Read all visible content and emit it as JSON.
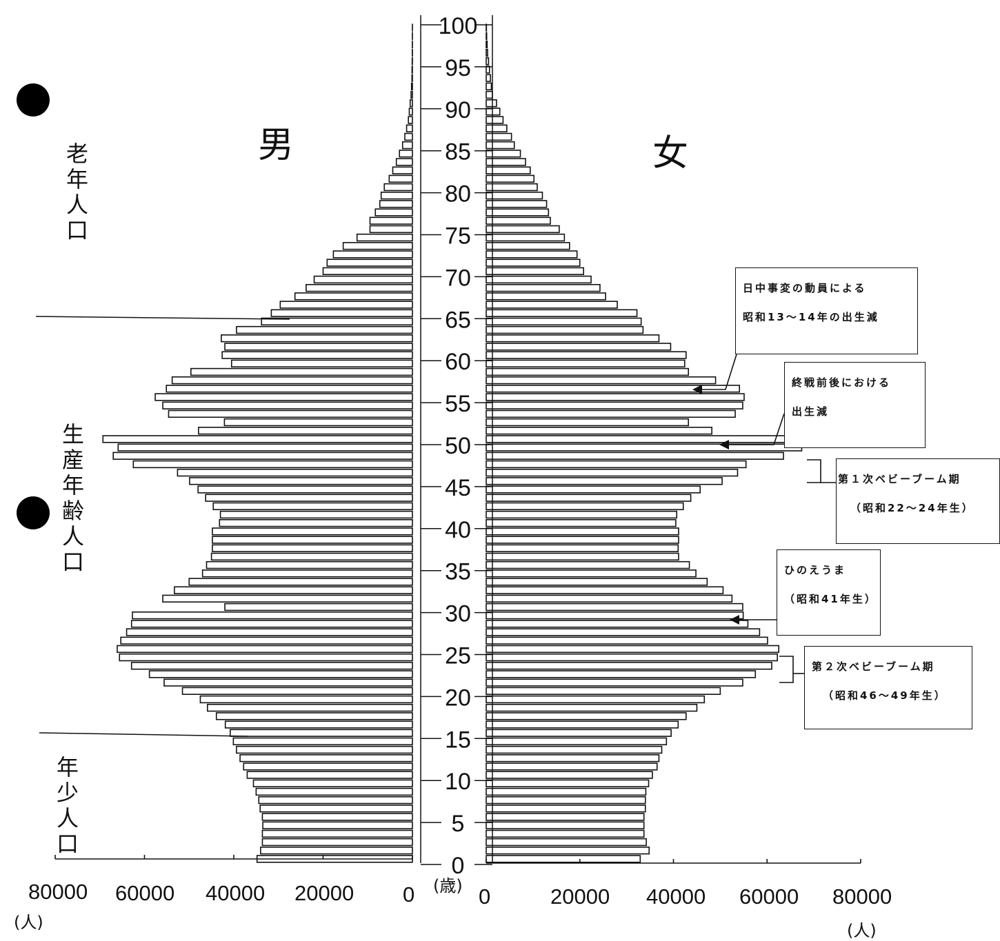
{
  "chart_data": {
    "type": "bar",
    "orientation": "horizontal-population-pyramid",
    "age_ticks": [
      "100",
      "95",
      "90",
      "85",
      "80",
      "75",
      "70",
      "65",
      "60",
      "55",
      "50",
      "45",
      "40",
      "35",
      "30",
      "25",
      "20",
      "15",
      "10",
      "5",
      "0"
    ],
    "age_unit": "(歳)",
    "male_label": "男",
    "female_label": "女",
    "x_ticks_male": [
      "80000",
      "60000",
      "40000",
      "20000",
      "0"
    ],
    "x_ticks_female": [
      "0",
      "20000",
      "40000",
      "60000",
      "80000"
    ],
    "x_unit": "(人)",
    "xlim": [
      0,
      80000
    ],
    "ages": [
      0,
      1,
      2,
      3,
      4,
      5,
      6,
      7,
      8,
      9,
      10,
      11,
      12,
      13,
      14,
      15,
      16,
      17,
      18,
      19,
      20,
      21,
      22,
      23,
      24,
      25,
      26,
      27,
      28,
      29,
      30,
      31,
      32,
      33,
      34,
      35,
      36,
      37,
      38,
      39,
      40,
      41,
      42,
      43,
      44,
      45,
      46,
      47,
      48,
      49,
      50,
      51,
      52,
      53,
      54,
      55,
      56,
      57,
      58,
      59,
      60,
      61,
      62,
      63,
      64,
      65,
      66,
      67,
      68,
      69,
      70,
      71,
      72,
      73,
      74,
      75,
      76,
      77,
      78,
      79,
      80,
      81,
      82,
      83,
      84,
      85,
      86,
      87,
      88,
      89,
      90,
      91,
      92,
      93,
      94,
      95,
      96,
      97,
      98,
      99
    ],
    "series": [
      {
        "name": "男",
        "values": [
          34800,
          34000,
          33600,
          33600,
          33500,
          33600,
          34100,
          34400,
          35000,
          35600,
          37000,
          37800,
          38600,
          39400,
          40100,
          40800,
          41900,
          43900,
          45900,
          47500,
          51500,
          55600,
          58900,
          62900,
          65600,
          66100,
          65300,
          64000,
          62900,
          62700,
          42000,
          55900,
          53300,
          50000,
          47000,
          46100,
          45000,
          44800,
          44800,
          44800,
          43200,
          43000,
          44600,
          46300,
          48000,
          49900,
          52600,
          62500,
          67000,
          65900,
          69300,
          47900,
          42100,
          54600,
          55900,
          57600,
          55100,
          53800,
          49600,
          40500,
          42600,
          42000,
          42800,
          39400,
          33800,
          31600,
          29600,
          26300,
          23800,
          22000,
          20000,
          19100,
          17700,
          15500,
          12400,
          9500,
          9500,
          8300,
          7300,
          7000,
          6300,
          5200,
          4400,
          3600,
          2900,
          2200,
          1700,
          1300,
          900,
          700,
          500,
          300,
          200,
          100,
          80,
          50,
          30,
          20,
          10,
          5
        ]
      },
      {
        "name": "女",
        "values": [
          32900,
          34800,
          34200,
          33700,
          33700,
          33700,
          34000,
          34000,
          34100,
          34700,
          35500,
          36500,
          36900,
          37500,
          38500,
          39500,
          41000,
          42700,
          45000,
          46600,
          50000,
          54800,
          57500,
          61000,
          62200,
          62500,
          60100,
          58400,
          55900,
          54900,
          54800,
          52500,
          50600,
          47200,
          44800,
          43400,
          41100,
          41000,
          41100,
          41100,
          40500,
          40700,
          42100,
          43700,
          45700,
          50400,
          53700,
          55500,
          63500,
          67400,
          67700,
          48200,
          43200,
          53200,
          54800,
          55100,
          54100,
          49000,
          43200,
          42400,
          42700,
          39400,
          36900,
          33500,
          33100,
          32200,
          28000,
          25500,
          24300,
          22400,
          20800,
          20000,
          19400,
          17800,
          16700,
          15600,
          13700,
          13300,
          12900,
          12000,
          10900,
          10200,
          9400,
          8400,
          7300,
          6000,
          5400,
          4400,
          3600,
          2900,
          2200,
          1300,
          1100,
          900,
          700,
          500,
          300,
          200,
          100,
          50
        ]
      }
    ],
    "grid": false,
    "legend": "none"
  },
  "labels": {
    "elderly": "老年人口",
    "working": "生産年齢人口",
    "youth": "年少人口"
  },
  "annotations": [
    {
      "id": "sino-war",
      "lines": [
        "日中事変の動員による",
        "昭和13～14年の出生減"
      ]
    },
    {
      "id": "war-end",
      "lines": [
        "終戦前後における",
        "出生減"
      ]
    },
    {
      "id": "boom1",
      "lines": [
        "第１次ベビーブーム期",
        "（昭和22～24年生）"
      ]
    },
    {
      "id": "hinoeuma",
      "lines": [
        "ひのえうま",
        "（昭和41年生）"
      ]
    },
    {
      "id": "boom2",
      "lines": [
        "第２次ベビーブーム期",
        "（昭和46～49年生）"
      ]
    }
  ]
}
